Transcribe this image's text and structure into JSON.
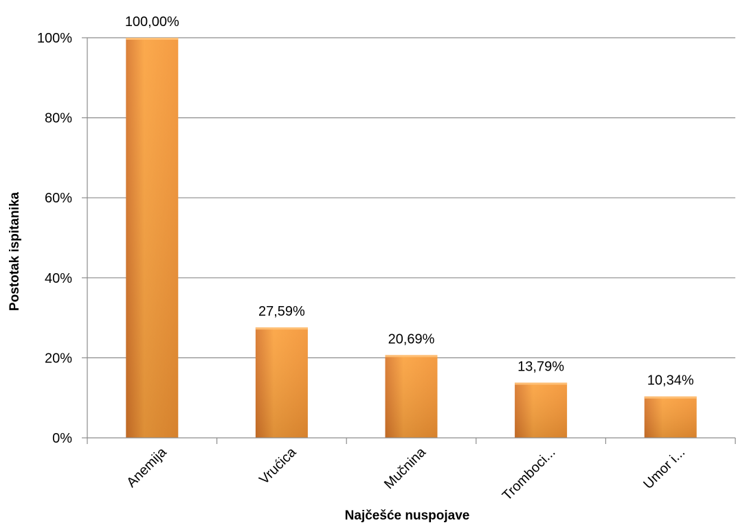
{
  "chart_data": {
    "type": "bar",
    "title": "",
    "xlabel": "Najčešće nuspojave",
    "ylabel": "Postotak ispitanika",
    "categories": [
      "Anemija",
      "Vrućica",
      "Mučnina",
      "Tromboci...",
      "Umor i..."
    ],
    "values": [
      100.0,
      27.59,
      20.69,
      13.79,
      10.34
    ],
    "data_labels": [
      "100,00%",
      "27,59%",
      "20,69%",
      "13,79%",
      "10,34%"
    ],
    "ylim": [
      0,
      100
    ],
    "yticks": [
      0,
      20,
      40,
      60,
      80,
      100
    ],
    "ytick_labels": [
      "0%",
      "20%",
      "40%",
      "60%",
      "80%",
      "100%"
    ],
    "grid": true,
    "legend": "none",
    "colors": {
      "bar_light": "#FBA23E",
      "bar_mid": "#F39333",
      "bar_dark": "#D8762A",
      "gridline": "#8C8C8C",
      "axis": "#8C8C8C"
    }
  }
}
